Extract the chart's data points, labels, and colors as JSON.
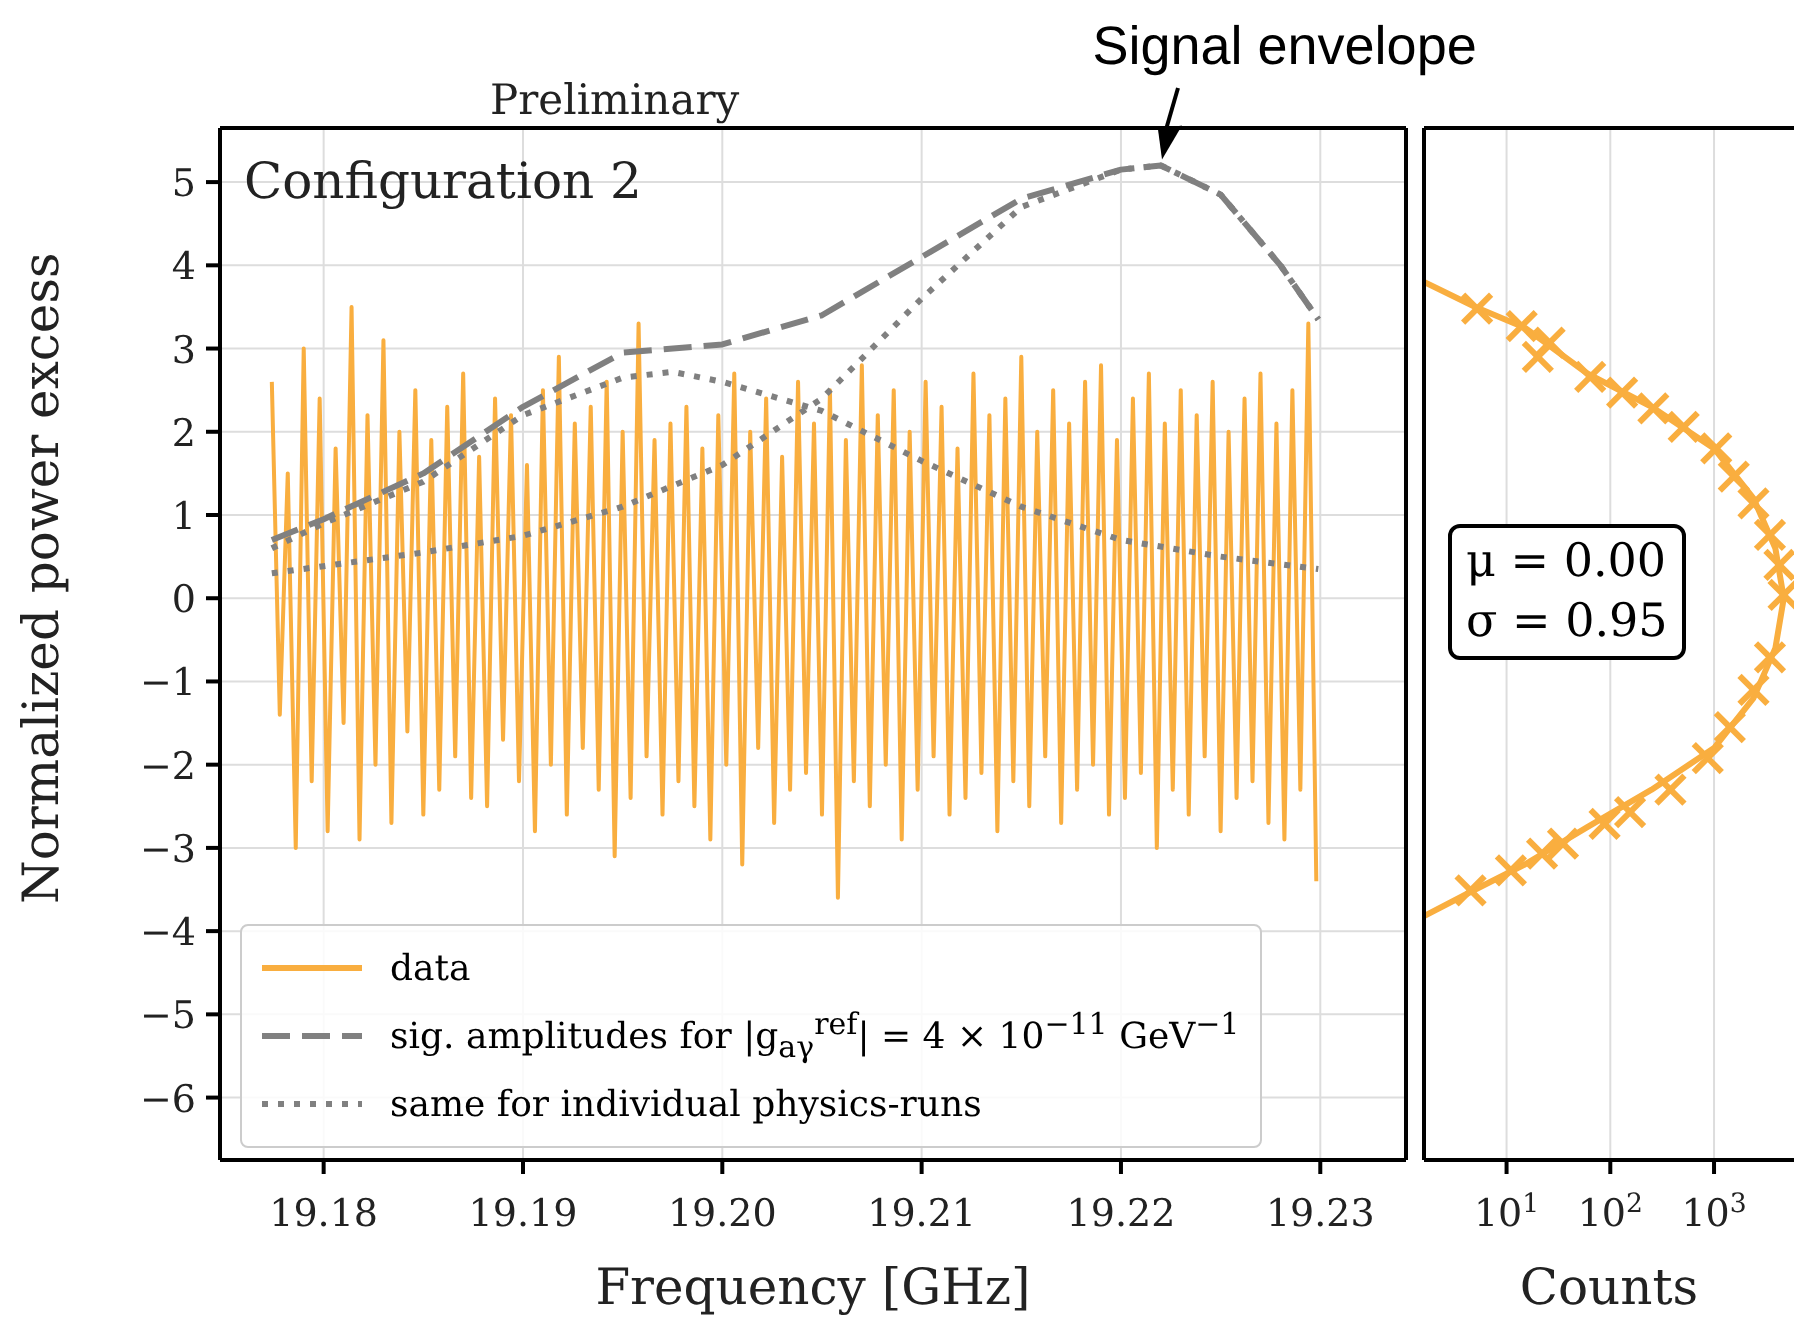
{
  "chart_data": [
    {
      "type": "line",
      "xlabel": "Frequency [GHz]",
      "ylabel": "Normalized power excess",
      "annotations": [
        "Preliminary",
        "Configuration 2",
        {
          "text": "Signal envelope",
          "x": 19.222,
          "y": 5.2
        }
      ],
      "xlim": [
        19.1748,
        19.2343
      ],
      "ylim": [
        -6.75,
        5.65
      ],
      "xticks": [
        19.18,
        19.19,
        {
          "value": 19.2,
          "label": "19.20"
        },
        19.21,
        19.22,
        19.23
      ],
      "yticks": [
        {
          "value": -6,
          "label": "−6"
        },
        {
          "value": -5,
          "label": "−5"
        },
        {
          "value": -4,
          "label": "−4"
        },
        {
          "value": -3,
          "label": "−3"
        },
        {
          "value": -2,
          "label": "−2"
        },
        {
          "value": -1,
          "label": "−1"
        },
        0,
        1,
        2,
        3,
        4,
        5
      ],
      "grid": true,
      "legend": "bottom left",
      "series": [
        {
          "name": "data",
          "color": "#f9ae3f",
          "line_style": "solid",
          "x": [
            19.1774,
            19.1778,
            19.1782,
            19.1786,
            19.179,
            19.1794,
            19.1798,
            19.1802,
            19.1806,
            19.181,
            19.1814,
            19.1818,
            19.1822,
            19.1826,
            19.183,
            19.1834,
            19.1838,
            19.1842,
            19.1846,
            19.185,
            19.1854,
            19.1858,
            19.1862,
            19.1866,
            19.187,
            19.1874,
            19.1878,
            19.1882,
            19.1886,
            19.189,
            19.1894,
            19.1898,
            19.1902,
            19.1906,
            19.191,
            19.1914,
            19.1918,
            19.1922,
            19.1926,
            19.193,
            19.1934,
            19.1938,
            19.1942,
            19.1946,
            19.195,
            19.1954,
            19.1958,
            19.1962,
            19.1966,
            19.197,
            19.1974,
            19.1978,
            19.1982,
            19.1986,
            19.199,
            19.1994,
            19.1998,
            19.2002,
            19.2006,
            19.201,
            19.2014,
            19.2018,
            19.2022,
            19.2026,
            19.203,
            19.2034,
            19.2038,
            19.2042,
            19.2046,
            19.205,
            19.2054,
            19.2058,
            19.2062,
            19.2066,
            19.207,
            19.2074,
            19.2078,
            19.2082,
            19.2086,
            19.209,
            19.2094,
            19.2098,
            19.2102,
            19.2106,
            19.211,
            19.2114,
            19.2118,
            19.2122,
            19.2126,
            19.213,
            19.2134,
            19.2138,
            19.2142,
            19.2146,
            19.215,
            19.2154,
            19.2158,
            19.2162,
            19.2166,
            19.217,
            19.2174,
            19.2178,
            19.2182,
            19.2186,
            19.219,
            19.2194,
            19.2198,
            19.2202,
            19.2206,
            19.221,
            19.2214,
            19.2218,
            19.2222,
            19.2226,
            19.223,
            19.2234,
            19.2238,
            19.2242,
            19.2246,
            19.225,
            19.2254,
            19.2258,
            19.2262,
            19.2266,
            19.227,
            19.2274,
            19.2278,
            19.2282,
            19.2286,
            19.229,
            19.2294,
            19.2298
          ],
          "values": [
            2.6,
            -1.4,
            1.5,
            -3.0,
            3.0,
            -2.2,
            2.4,
            -2.8,
            1.8,
            -1.5,
            3.5,
            -2.9,
            2.2,
            -2.0,
            3.1,
            -2.7,
            2.0,
            -1.6,
            2.5,
            -2.6,
            1.9,
            -2.3,
            2.3,
            -1.9,
            2.7,
            -2.4,
            1.7,
            -2.5,
            2.4,
            -1.7,
            2.2,
            -2.2,
            1.6,
            -2.8,
            2.5,
            -2.0,
            2.9,
            -2.6,
            2.1,
            -1.8,
            2.3,
            -2.3,
            2.6,
            -3.1,
            2.0,
            -2.4,
            3.3,
            -1.9,
            1.9,
            -2.6,
            2.1,
            -2.2,
            2.3,
            -2.5,
            1.8,
            -2.9,
            2.2,
            -2.0,
            2.7,
            -3.2,
            2.0,
            -1.8,
            2.4,
            -2.7,
            1.7,
            -2.3,
            2.6,
            -2.1,
            2.1,
            -2.6,
            2.5,
            -3.6,
            1.9,
            -2.2,
            2.8,
            -2.5,
            2.2,
            -2.0,
            2.5,
            -2.9,
            2.0,
            -2.3,
            2.6,
            -1.9,
            2.3,
            -2.6,
            1.8,
            -2.4,
            2.7,
            -2.1,
            2.2,
            -2.8,
            2.4,
            -2.2,
            2.9,
            -2.5,
            2.0,
            -1.9,
            2.5,
            -2.7,
            2.1,
            -2.3,
            2.6,
            -2.0,
            2.8,
            -2.6,
            1.9,
            -2.4,
            2.4,
            -2.1,
            2.7,
            -3.0,
            2.1,
            -2.3,
            2.5,
            -2.6,
            2.2,
            -1.9,
            2.6,
            -2.8,
            2.0,
            -2.4,
            2.4,
            -2.2,
            2.7,
            -2.7,
            2.1,
            -2.9,
            2.5,
            -2.3,
            3.3,
            -3.4
          ]
        },
        {
          "name": "sig. amplitudes for |g$_{aγ}$$^{ref}$| = 4 × 10$^{−11}$ GeV$^{−1}$",
          "color": "#808080",
          "line_style": "dashed",
          "x": [
            19.1774,
            19.18,
            19.185,
            19.19,
            19.195,
            19.2,
            19.205,
            19.21,
            19.215,
            19.22,
            19.222,
            19.225,
            19.228,
            19.2299
          ],
          "values": [
            0.7,
            0.95,
            1.5,
            2.3,
            2.95,
            3.05,
            3.4,
            4.1,
            4.8,
            5.15,
            5.2,
            4.85,
            4.0,
            3.35
          ]
        },
        {
          "name": "same for individual physics-runs",
          "color": "#808080",
          "line_style": "dotted",
          "x": [
            19.1774,
            19.18,
            19.185,
            19.19,
            19.195,
            19.1975,
            19.2,
            19.205,
            19.21,
            19.215,
            19.22,
            19.225,
            19.2299
          ],
          "values": [
            0.6,
            0.9,
            1.4,
            2.2,
            2.65,
            2.72,
            2.6,
            2.25,
            1.65,
            1.1,
            0.7,
            0.5,
            0.35
          ]
        },
        {
          "color": "#808080",
          "line_style": "dotted",
          "x": [
            19.1774,
            19.185,
            19.19,
            19.195,
            19.2,
            19.205,
            19.21,
            19.215,
            19.22,
            19.222,
            19.225,
            19.228,
            19.2299
          ],
          "values": [
            0.3,
            0.55,
            0.75,
            1.1,
            1.6,
            2.4,
            3.6,
            4.7,
            5.15,
            5.2,
            4.85,
            4.0,
            3.35
          ]
        }
      ]
    },
    {
      "type": "scatter",
      "xlabel": "Counts",
      "annotations": [
        "μ = 0.00\nσ = 0.95"
      ],
      "log": "x",
      "xlim": [
        1.6,
        5900
      ],
      "ylim": [
        -6.75,
        5.65
      ],
      "xticks": [
        {
          "value": 10,
          "label": "10$^{1}$"
        },
        {
          "value": 100,
          "label": "10$^{2}$"
        },
        {
          "value": 1000,
          "label": "10$^{3}$"
        }
      ],
      "yticks": [
        -6,
        -5,
        -4,
        -3,
        -2,
        -1,
        0,
        1,
        2,
        3,
        4,
        5
      ],
      "tick_labels": "x",
      "grid": true,
      "series": [
        {
          "color": "#f9ae3f",
          "marker": "cross",
          "x": [
            5.2,
            14,
            26,
            20,
            64,
            130,
            260,
            510,
            1050,
            1550,
            2400,
            3460,
            4270,
            4680,
            3460,
            2400,
            1420,
            870,
            380,
            155,
            88,
            35,
            22,
            11,
            4.5
          ],
          "values": [
            3.48,
            3.27,
            3.07,
            2.9,
            2.66,
            2.47,
            2.28,
            2.06,
            1.8,
            1.46,
            1.14,
            0.76,
            0.4,
            0.04,
            -0.71,
            -1.1,
            -1.55,
            -1.92,
            -2.3,
            -2.57,
            -2.71,
            -2.95,
            -3.07,
            -3.27,
            -3.51
          ]
        },
        {
          "type": "line",
          "color": "#f9ae3f",
          "marker": "none",
          "x": [
            1.6,
            5,
            15,
            60,
            250,
            1000,
            2400,
            3900,
            4700,
            3900,
            2400,
            1000,
            250,
            60,
            15,
            5,
            1.6
          ],
          "values": [
            3.8,
            3.5,
            3.25,
            2.7,
            2.3,
            1.8,
            1.2,
            0.6,
            0,
            -0.6,
            -1.2,
            -1.8,
            -2.3,
            -2.75,
            -3.2,
            -3.5,
            -3.82
          ]
        }
      ]
    }
  ]
}
